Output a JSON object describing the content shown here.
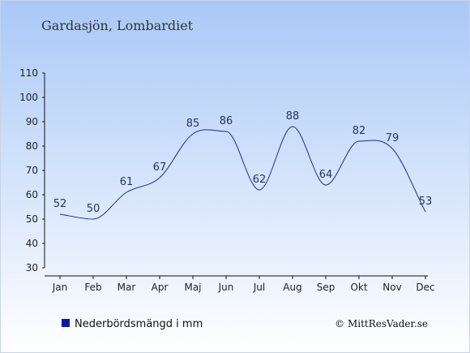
{
  "title": "Gardasjön, Lombardiet",
  "legend": {
    "label": "Nederbördsmängd i mm",
    "color": "#0a1aa0"
  },
  "credit": "© MittResVader.se",
  "colors": {
    "line": "#1a2a9a",
    "bg_top": "#a9c8f7",
    "bg_bottom": "#ffffff"
  },
  "chart_data": {
    "type": "line",
    "categories": [
      "Jan",
      "Feb",
      "Mar",
      "Apr",
      "Maj",
      "Jun",
      "Jul",
      "Aug",
      "Sep",
      "Okt",
      "Nov",
      "Dec"
    ],
    "series": [
      {
        "name": "Nederbördsmängd i mm",
        "values": [
          52,
          50,
          61,
          67,
          85,
          86,
          62,
          88,
          64,
          82,
          79,
          53
        ]
      }
    ],
    "yticks": [
      30,
      40,
      50,
      60,
      70,
      80,
      90,
      100,
      110
    ],
    "ylim": [
      30,
      110
    ],
    "grid": false,
    "legend_position": "bottom-left"
  }
}
